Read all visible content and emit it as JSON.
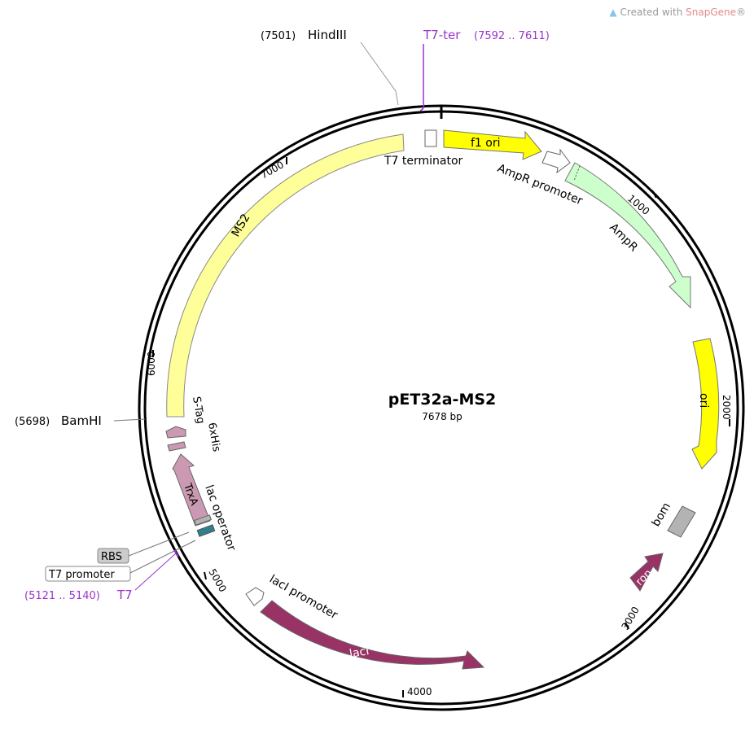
{
  "watermark": {
    "prefix": "Created with ",
    "brand": "SnapGene",
    "reg": "®",
    "logo_icon": "snapgene-logo-icon"
  },
  "plasmid": {
    "name": "pET32a-MS2",
    "length_label": "7678 bp"
  },
  "ticks": [
    "1000",
    "2000",
    "3000",
    "4000",
    "5000",
    "6000",
    "7000"
  ],
  "features": {
    "MS2": {
      "label": "MS2",
      "color": "#ffff99"
    },
    "t7_terminator": {
      "label": "T7 terminator"
    },
    "f1_ori": {
      "label": "f1 ori",
      "color": "#ffff00"
    },
    "ampr_promoter": {
      "label": "AmpR promoter"
    },
    "ampr": {
      "label": "AmpR",
      "color": "#ccffcc"
    },
    "ori": {
      "label": "ori",
      "color": "#ffff00"
    },
    "bom": {
      "label": "bom",
      "color": "#b3b3b3"
    },
    "rop": {
      "label": "rop",
      "color": "#993366"
    },
    "laci": {
      "label": "lacI",
      "color": "#993366"
    },
    "laci_promoter": {
      "label": "lacI promoter"
    },
    "lac_operator": {
      "label": "lac operator"
    },
    "trxa": {
      "label": "TrxA",
      "color": "#cc99b3"
    },
    "his6": {
      "label": "6xHis"
    },
    "stag": {
      "label": "S-Tag"
    }
  },
  "sites": {
    "hindiii": {
      "pos": "(7501)",
      "name": "HindIII"
    },
    "bamhi": {
      "pos": "(5698)",
      "name": "BamHI"
    },
    "t7ter": {
      "name": "T7-ter",
      "range": "(7592 .. 7611)"
    },
    "t7": {
      "range": "(5121 .. 5140)",
      "name": "T7"
    },
    "rbs": {
      "name": "RBS"
    },
    "t7promoter": {
      "name": "T7 promoter"
    }
  },
  "colors": {
    "primer": "#9933cc",
    "backbone": "#000000",
    "lacop": "#2f7f8f"
  }
}
